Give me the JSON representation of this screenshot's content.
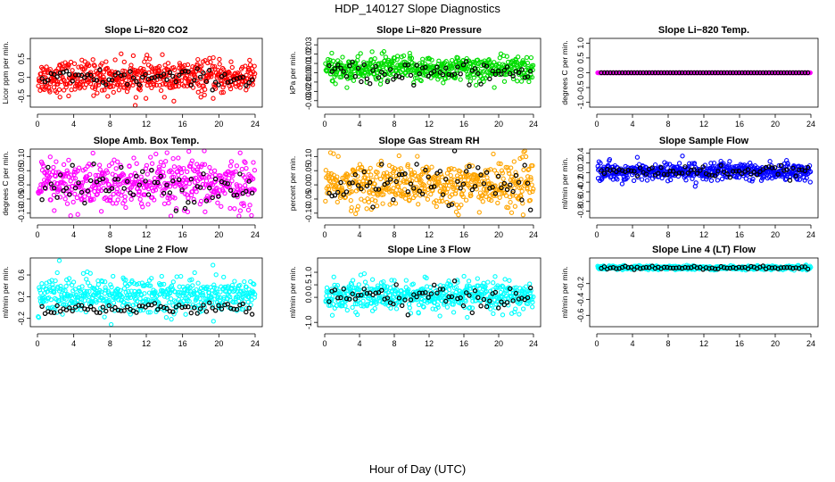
{
  "title": "HDP_140127  Slope Diagnostics",
  "xlabel": "Hour of Day (UTC)",
  "chart_data": [
    {
      "type": "scatter",
      "title": "Slope Li−820 CO2",
      "ylabel": "Licor ppm per min.",
      "xlim": [
        0,
        24
      ],
      "ylim": [
        -0.75,
        1.0
      ],
      "xticks": [
        0,
        4,
        8,
        12,
        16,
        20,
        24
      ],
      "xtick_labels": [
        "0",
        "4",
        "8",
        "12",
        "16",
        "20",
        "24"
      ],
      "yticks": [
        -0.5,
        0.0,
        0.5
      ],
      "ytick_labels": [
        "-0.5",
        "0.0",
        "0.5"
      ],
      "color": "#ff0000",
      "series": [
        {
          "name": "all",
          "center": 0.0,
          "spread": 0.22
        },
        {
          "name": "highlight",
          "color": "#000000",
          "center": -0.02,
          "spread": 0.12
        }
      ]
    },
    {
      "type": "scatter",
      "title": "Slope Li−820 Pressure",
      "ylabel": "kPa per min.",
      "xlim": [
        0,
        24
      ],
      "ylim": [
        -0.035,
        0.035
      ],
      "xticks": [
        0,
        4,
        8,
        12,
        16,
        20,
        24
      ],
      "xtick_labels": [
        "0",
        "4",
        "8",
        "12",
        "16",
        "20",
        "24"
      ],
      "yticks": [
        -0.03,
        -0.02,
        -0.01,
        0.0,
        0.01,
        0.02,
        0.03
      ],
      "ytick_labels": [
        "-0.03",
        "-0.02",
        "-0.01",
        "0.00",
        "0.01",
        "0.02",
        "0.03"
      ],
      "color": "#00dd00",
      "series": [
        {
          "name": "all",
          "center": 0.004,
          "spread": 0.007
        },
        {
          "name": "highlight",
          "color": "#000000",
          "center": 0.0,
          "spread": 0.006
        }
      ]
    },
    {
      "type": "scatter",
      "title": "Slope Li−820 Temp.",
      "ylabel": "degrees C per min.",
      "xlim": [
        0,
        24
      ],
      "ylim": [
        -1.1,
        1.1
      ],
      "xticks": [
        0,
        4,
        8,
        12,
        16,
        20,
        24
      ],
      "xtick_labels": [
        "0",
        "4",
        "8",
        "12",
        "16",
        "20",
        "24"
      ],
      "yticks": [
        -1.0,
        -0.5,
        0.0,
        0.5,
        1.0
      ],
      "ytick_labels": [
        "-1.0",
        "-0.5",
        "0.0",
        "0.5",
        "1.0"
      ],
      "color": "#ff00ff",
      "series": [
        {
          "name": "all",
          "center": 0.0,
          "spread": 0.0
        },
        {
          "name": "highlight",
          "color": "#000000",
          "center": 0.0,
          "spread": 0.0
        }
      ]
    },
    {
      "type": "scatter",
      "title": "Slope Amb. Box Temp.",
      "ylabel": "degrees C per min.",
      "xlim": [
        0,
        24
      ],
      "ylim": [
        -0.11,
        0.12
      ],
      "xticks": [
        0,
        4,
        8,
        12,
        16,
        20,
        24
      ],
      "xtick_labels": [
        "0",
        "4",
        "8",
        "12",
        "16",
        "20",
        "24"
      ],
      "yticks": [
        -0.1,
        -0.05,
        0.0,
        0.05,
        0.1
      ],
      "ytick_labels": [
        "-0.10",
        "-0.05",
        "0.00",
        "0.05",
        "0.10"
      ],
      "color": "#ff00ff",
      "series": [
        {
          "name": "all",
          "center": 0.0,
          "spread": 0.045
        },
        {
          "name": "highlight",
          "color": "#000000",
          "center": 0.0,
          "spread": 0.035
        }
      ]
    },
    {
      "type": "scatter",
      "title": "Slope Gas Stream RH",
      "ylabel": "percent per min.",
      "xlim": [
        0,
        24
      ],
      "ylim": [
        -0.11,
        0.12
      ],
      "xticks": [
        0,
        4,
        8,
        12,
        16,
        20,
        24
      ],
      "xtick_labels": [
        "0",
        "4",
        "8",
        "12",
        "16",
        "20",
        "24"
      ],
      "yticks": [
        -0.1,
        -0.05,
        0.0,
        0.05,
        0.1
      ],
      "ytick_labels": [
        "-0.10",
        "-0.05",
        "0.00",
        "0.05",
        "0.10"
      ],
      "color": "#ffa500",
      "series": [
        {
          "name": "all",
          "center": 0.0,
          "spread": 0.04
        },
        {
          "name": "highlight",
          "color": "#000000",
          "center": 0.0,
          "spread": 0.035
        }
      ]
    },
    {
      "type": "scatter",
      "title": "Slope Sample Flow",
      "ylabel": "ml/min per min.",
      "xlim": [
        0,
        24
      ],
      "ylim": [
        -0.9,
        0.45
      ],
      "xticks": [
        0,
        4,
        8,
        12,
        16,
        20,
        24
      ],
      "xtick_labels": [
        "0",
        "4",
        "8",
        "12",
        "16",
        "20",
        "24"
      ],
      "yticks": [
        -0.8,
        -0.6,
        -0.4,
        -0.2,
        0.0,
        0.2,
        0.4
      ],
      "ytick_labels": [
        "-0.8",
        "-0.6",
        "-0.4",
        "-0.2",
        "0.0",
        "0.2",
        "0.4"
      ],
      "color": "#0000ff",
      "series": [
        {
          "name": "all",
          "center": 0.02,
          "spread": 0.09
        },
        {
          "name": "highlight",
          "color": "#000000",
          "center": 0.02,
          "spread": 0.06
        }
      ]
    },
    {
      "type": "scatter",
      "title": "Slope Line 2 Flow",
      "ylabel": "ml/min per min.",
      "xlim": [
        0,
        24
      ],
      "ylim": [
        -0.32,
        0.88
      ],
      "xticks": [
        0,
        4,
        8,
        12,
        16,
        20,
        24
      ],
      "xtick_labels": [
        "0",
        "4",
        "8",
        "12",
        "16",
        "20",
        "24"
      ],
      "yticks": [
        -0.2,
        0.2,
        0.6
      ],
      "ytick_labels": [
        "-0.2",
        "0.2",
        "0.6"
      ],
      "color": "#00ffff",
      "series": [
        {
          "name": "all",
          "center": 0.22,
          "spread": 0.17
        },
        {
          "name": "highlight",
          "color": "#000000",
          "center": -0.02,
          "spread": 0.05
        }
      ]
    },
    {
      "type": "scatter",
      "title": "Slope Line 3 Flow",
      "ylabel": "ml/min per min.",
      "xlim": [
        0,
        24
      ],
      "ylim": [
        -1.1,
        1.5
      ],
      "xticks": [
        0,
        4,
        8,
        12,
        16,
        20,
        24
      ],
      "xtick_labels": [
        "0",
        "4",
        "8",
        "12",
        "16",
        "20",
        "24"
      ],
      "yticks": [
        -1.0,
        0.0,
        0.5,
        1.0
      ],
      "ytick_labels": [
        "-1.0",
        "0.0",
        "0.5",
        "1.0"
      ],
      "color": "#00ffff",
      "series": [
        {
          "name": "all",
          "center": 0.05,
          "spread": 0.28
        },
        {
          "name": "highlight",
          "color": "#000000",
          "center": 0.0,
          "spread": 0.25
        }
      ]
    },
    {
      "type": "scatter",
      "title": "Slope Line 4 (LT) Flow",
      "ylabel": "ml/min per min.",
      "xlim": [
        0,
        24
      ],
      "ylim": [
        -0.72,
        0.1
      ],
      "xticks": [
        0,
        4,
        8,
        12,
        16,
        20,
        24
      ],
      "xtick_labels": [
        "0",
        "4",
        "8",
        "12",
        "16",
        "20",
        "24"
      ],
      "yticks": [
        -0.6,
        -0.4,
        -0.2
      ],
      "ytick_labels": [
        "-0.6",
        "-0.4",
        "-0.2"
      ],
      "color": "#00ffff",
      "series": [
        {
          "name": "all",
          "center": 0.0,
          "spread": 0.012
        },
        {
          "name": "highlight",
          "color": "#000000",
          "center": 0.0,
          "spread": 0.01
        }
      ]
    }
  ]
}
